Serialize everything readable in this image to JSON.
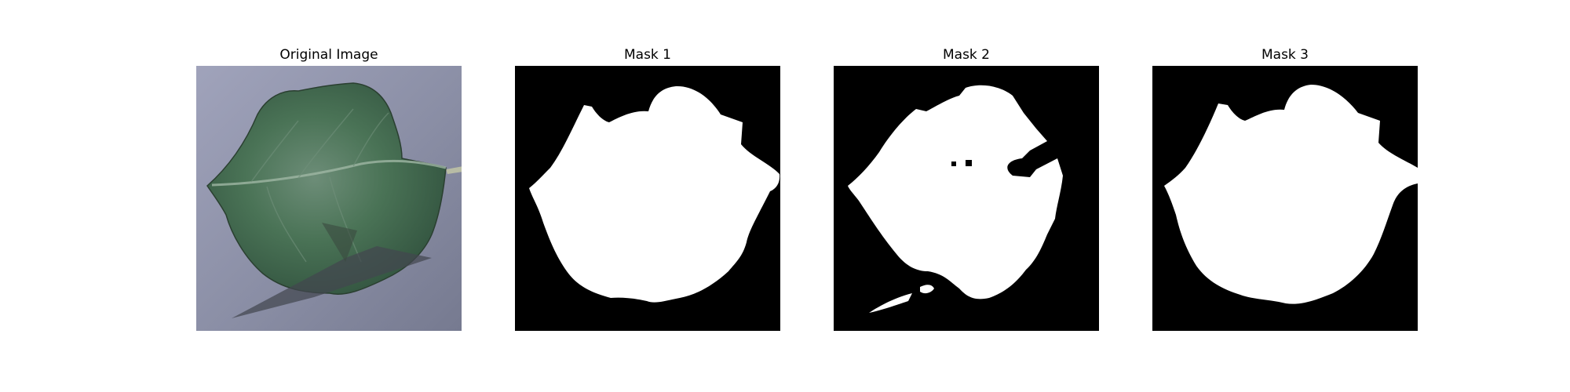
{
  "figure": {
    "panels": [
      {
        "title": "Original Image",
        "kind": "photo"
      },
      {
        "title": "Mask 1",
        "kind": "mask"
      },
      {
        "title": "Mask 2",
        "kind": "mask"
      },
      {
        "title": "Mask 3",
        "kind": "mask"
      }
    ]
  },
  "colors": {
    "background": "#ffffff",
    "mask_background": "#000000",
    "mask_foreground": "#ffffff",
    "photo_background": "#8f93a8",
    "leaf_primary": "#3f6b4d",
    "leaf_dark": "#2d4f3b",
    "shadow": "#4b4d58"
  }
}
